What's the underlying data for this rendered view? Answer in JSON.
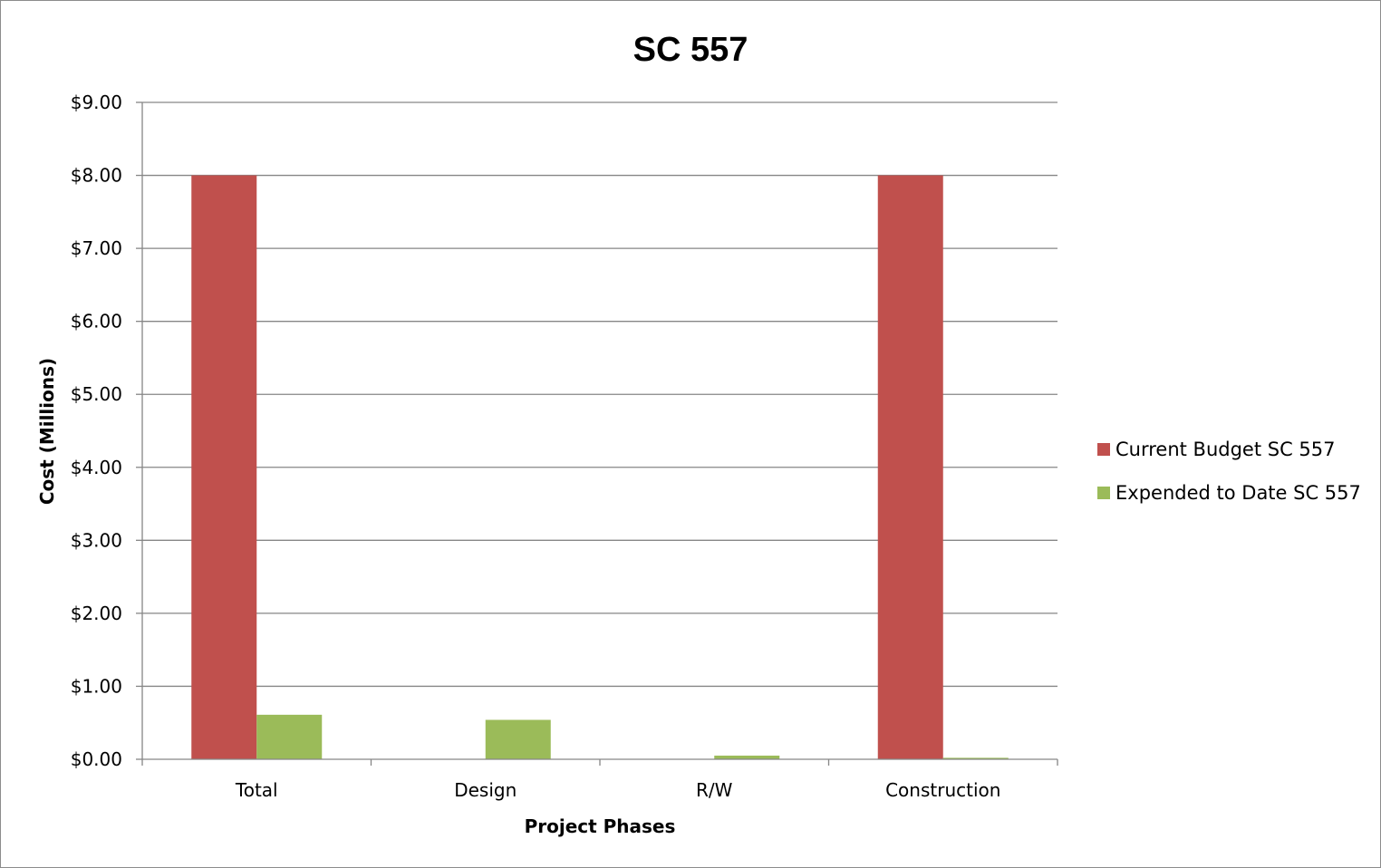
{
  "chart_data": {
    "type": "bar",
    "title": "SC 557",
    "xlabel": "Project Phases",
    "ylabel": "Cost (Millions)",
    "categories": [
      "Total",
      "Design",
      "R/W",
      "Construction"
    ],
    "series": [
      {
        "name": "Current Budget SC 557",
        "color": "#c0504d",
        "values": [
          8.0,
          0.0,
          0.0,
          8.0
        ]
      },
      {
        "name": "Expended to Date SC 557",
        "color": "#9bbb59",
        "values": [
          0.61,
          0.54,
          0.05,
          0.02
        ]
      }
    ],
    "ylim": [
      0,
      9
    ],
    "ytick_labels": [
      "$0.00",
      "$1.00",
      "$2.00",
      "$3.00",
      "$4.00",
      "$5.00",
      "$6.00",
      "$7.00",
      "$8.00",
      "$9.00"
    ],
    "grid": true,
    "legend_position": "right"
  }
}
